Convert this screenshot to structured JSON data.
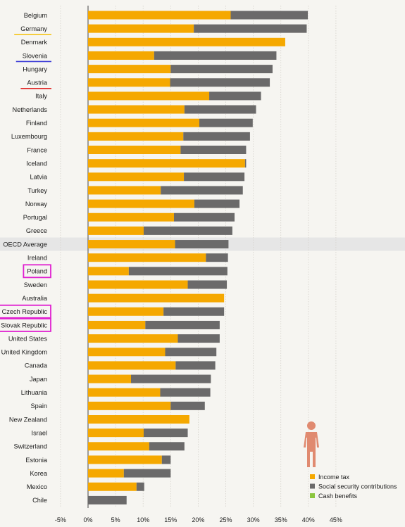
{
  "chart_data": {
    "type": "bar",
    "orientation": "horizontal",
    "stacked": true,
    "categories": [
      "Belgium",
      "Germany",
      "Denmark",
      "Slovenia",
      "Hungary",
      "Austria",
      "Italy",
      "Netherlands",
      "Finland",
      "Luxembourg",
      "France",
      "Iceland",
      "Latvia",
      "Turkey",
      "Norway",
      "Portugal",
      "Greece",
      "OECD Average",
      "Ireland",
      "Poland",
      "Sweden",
      "Australia",
      "Czech Republic",
      "Slovak Republic",
      "United States",
      "United Kingdom",
      "Canada",
      "Japan",
      "Lithuania",
      "Spain",
      "New Zealand",
      "Israel",
      "Switzerland",
      "Estonia",
      "Korea",
      "Mexico",
      "Chile"
    ],
    "series": [
      {
        "name": "Income tax",
        "color": "#f5a800",
        "values": [
          25.9,
          19.2,
          35.8,
          12.0,
          15.0,
          14.9,
          22.0,
          17.5,
          20.2,
          17.3,
          16.8,
          28.5,
          17.4,
          13.2,
          19.3,
          15.6,
          10.1,
          15.8,
          21.4,
          7.4,
          18.1,
          24.7,
          13.7,
          10.4,
          16.3,
          14.0,
          15.9,
          7.8,
          13.1,
          15.0,
          18.4,
          10.1,
          11.1,
          13.4,
          6.5,
          8.8,
          0.0
        ]
      },
      {
        "name": "Social security contributions",
        "color": "#6b6a6a",
        "values": [
          14.0,
          20.5,
          0.0,
          22.2,
          18.5,
          18.1,
          9.4,
          13.0,
          9.7,
          12.1,
          11.9,
          0.2,
          11.0,
          14.9,
          8.2,
          11.0,
          16.1,
          9.7,
          4.0,
          17.9,
          7.1,
          0.0,
          11.0,
          13.5,
          7.6,
          9.3,
          7.2,
          14.5,
          9.1,
          6.2,
          0.0,
          8.0,
          6.4,
          1.6,
          8.5,
          1.4,
          7.0
        ]
      },
      {
        "name": "Cash benefits",
        "color": "#8cc63f",
        "values": [
          0,
          0,
          0,
          0,
          0,
          0,
          0,
          0,
          0,
          0,
          0,
          0,
          0,
          0,
          0,
          0,
          0,
          0,
          0,
          0,
          0,
          0,
          0,
          0,
          0,
          0,
          0,
          0,
          0,
          0,
          0,
          0,
          0,
          0,
          0,
          0,
          0
        ]
      }
    ],
    "x_ticks": [
      "-5%",
      "0%",
      "5%",
      "10%",
      "15%",
      "20%",
      "25%",
      "30%",
      "35%",
      "40%",
      "45%"
    ],
    "xlim": [
      -5,
      45
    ],
    "grid": true,
    "legend_position": "bottom-right",
    "highlight": {
      "OECD Average": "#9b1b30"
    },
    "underlines": {
      "Germany": "#f5c518",
      "Slovenia": "#3a3ad6",
      "Austria": "#e02020"
    },
    "boxed": [
      "Poland",
      "Czech Republic",
      "Slovak Republic"
    ],
    "box_color": "#e020d0",
    "figure_color": "#e08a70"
  }
}
